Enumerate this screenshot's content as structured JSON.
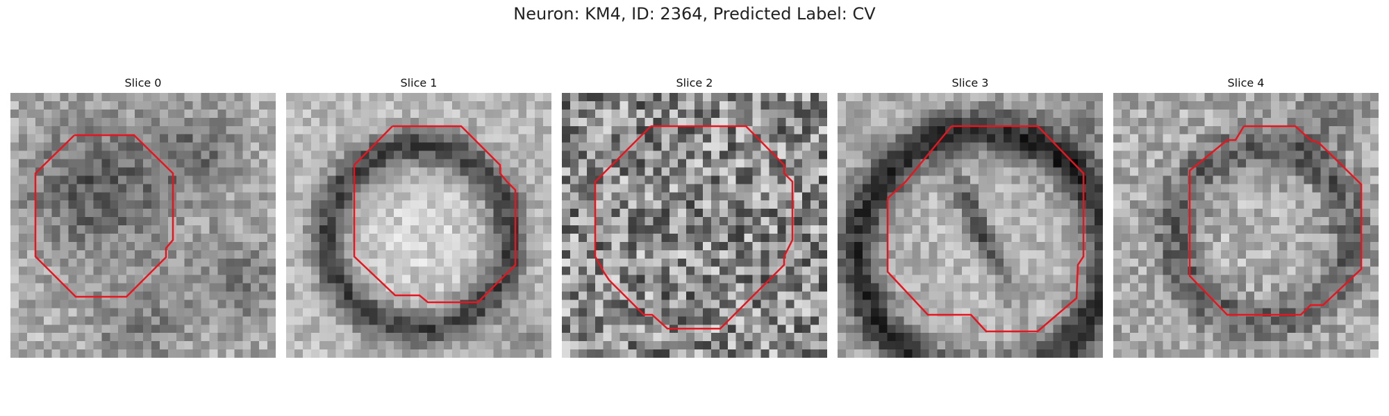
{
  "figure": {
    "title": "Neuron: KM4, ID: 2364, Predicted Label: CV"
  },
  "panels": [
    {
      "title": "Slice 0"
    },
    {
      "title": "Slice 1"
    },
    {
      "title": "Slice 2"
    },
    {
      "title": "Slice 3"
    },
    {
      "title": "Slice 4"
    }
  ],
  "colors": {
    "contour": "#e8141e",
    "background": "#ffffff"
  }
}
